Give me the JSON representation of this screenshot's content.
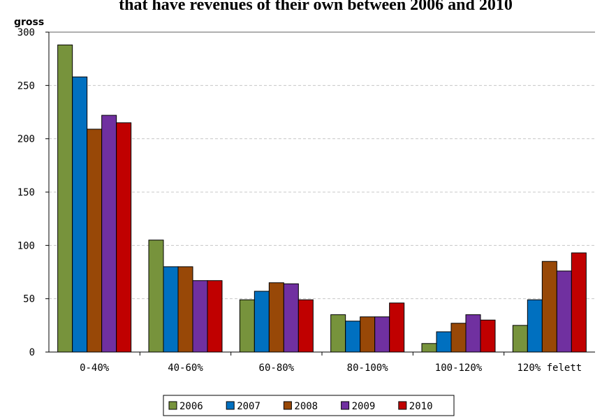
{
  "chart_data": {
    "type": "bar",
    "title": "that have revenues of their own between 2006 and 2010",
    "ylabel": "gross",
    "xlabel": "",
    "ylim": [
      0,
      300
    ],
    "yticks": [
      0,
      50,
      100,
      150,
      200,
      250,
      300
    ],
    "grid": true,
    "legend_position": "bottom",
    "categories": [
      "0-40%",
      "40-60%",
      "60-80%",
      "80-100%",
      "100-120%",
      "120% felett"
    ],
    "series": [
      {
        "name": "2006",
        "color": "#77933c",
        "values": [
          288,
          105,
          49,
          35,
          8,
          25
        ]
      },
      {
        "name": "2007",
        "color": "#0070c0",
        "values": [
          258,
          80,
          57,
          29,
          19,
          49
        ]
      },
      {
        "name": "2008",
        "color": "#984807",
        "values": [
          209,
          80,
          65,
          33,
          27,
          85
        ]
      },
      {
        "name": "2009",
        "color": "#7030a0",
        "values": [
          222,
          67,
          64,
          33,
          35,
          76
        ]
      },
      {
        "name": "2010",
        "color": "#c00000",
        "values": [
          215,
          67,
          49,
          46,
          30,
          93
        ]
      }
    ]
  }
}
